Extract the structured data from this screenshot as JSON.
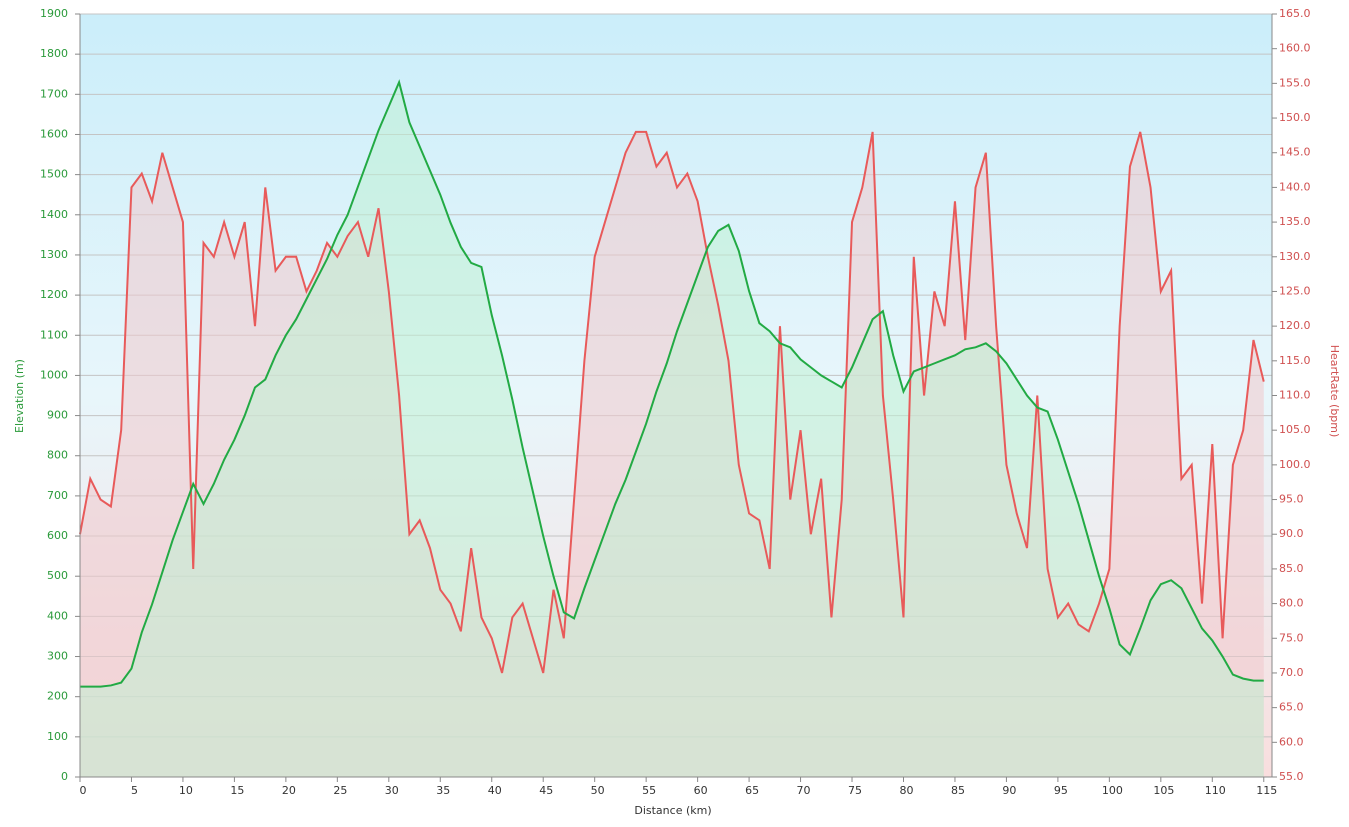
{
  "chart_data": {
    "type": "line",
    "xlabel": "Distance  (km)",
    "ylabel": "Elevation (m)",
    "y2label": "HeartRate (bpm)",
    "x": [
      0,
      1,
      2,
      3,
      4,
      5,
      6,
      7,
      8,
      9,
      10,
      11,
      12,
      13,
      14,
      15,
      16,
      17,
      18,
      19,
      20,
      21,
      22,
      23,
      24,
      25,
      26,
      27,
      28,
      29,
      30,
      31,
      32,
      33,
      34,
      35,
      36,
      37,
      38,
      39,
      40,
      41,
      42,
      43,
      44,
      45,
      46,
      47,
      48,
      49,
      50,
      51,
      52,
      53,
      54,
      55,
      56,
      57,
      58,
      59,
      60,
      61,
      62,
      63,
      64,
      65,
      66,
      67,
      68,
      69,
      70,
      71,
      72,
      73,
      74,
      75,
      76,
      77,
      78,
      79,
      80,
      81,
      82,
      83,
      84,
      85,
      86,
      87,
      88,
      89,
      90,
      91,
      92,
      93,
      94,
      95,
      96,
      97,
      98,
      99,
      100,
      101,
      102,
      103,
      104,
      105,
      106,
      107,
      108,
      109,
      110,
      111,
      112,
      113,
      114,
      115
    ],
    "series": [
      {
        "color": "#22aa44",
        "fill": "#bff0d4",
        "axis": "y",
        "values": [
          225,
          225,
          225,
          228,
          235,
          270,
          360,
          430,
          510,
          590,
          660,
          730,
          680,
          730,
          790,
          840,
          900,
          970,
          990,
          1050,
          1100,
          1140,
          1190,
          1240,
          1290,
          1350,
          1400,
          1470,
          1540,
          1610,
          1670,
          1730,
          1630,
          1570,
          1510,
          1450,
          1380,
          1320,
          1280,
          1270,
          1150,
          1050,
          940,
          820,
          710,
          600,
          500,
          410,
          395,
          470,
          540,
          610,
          680,
          740,
          810,
          880,
          960,
          1030,
          1110,
          1180,
          1250,
          1320,
          1360,
          1375,
          1310,
          1210,
          1130,
          1110,
          1080,
          1070,
          1040,
          1020,
          1000,
          985,
          970,
          1020,
          1080,
          1140,
          1160,
          1050,
          960,
          1010,
          1020,
          1030,
          1040,
          1050,
          1065,
          1070,
          1080,
          1060,
          1030,
          990,
          950,
          920,
          910,
          840,
          760,
          680,
          590,
          500,
          420,
          330,
          305,
          370,
          440,
          480,
          490,
          470,
          420,
          370,
          340,
          300,
          255,
          245,
          240,
          240
        ]
      },
      {
        "color": "#e85a5a",
        "fill": "#f0c8cc",
        "axis": "y2",
        "values": [
          90,
          98,
          95,
          94,
          105,
          140,
          142,
          138,
          145,
          140,
          135,
          85,
          132,
          130,
          135,
          130,
          135,
          120,
          140,
          128,
          130,
          130,
          125,
          128,
          132,
          130,
          133,
          135,
          130,
          137,
          125,
          110,
          90,
          92,
          88,
          82,
          80,
          76,
          88,
          78,
          75,
          70,
          78,
          80,
          75,
          70,
          82,
          75,
          95,
          115,
          130,
          135,
          140,
          145,
          148,
          148,
          143,
          145,
          140,
          142,
          138,
          130,
          123,
          115,
          100,
          93,
          92,
          85,
          120,
          95,
          105,
          90,
          98,
          78,
          95,
          135,
          140,
          148,
          110,
          95,
          78,
          130,
          110,
          125,
          120,
          138,
          118,
          140,
          145,
          120,
          100,
          93,
          88,
          110,
          85,
          78,
          80,
          77,
          76,
          80,
          85,
          120,
          143,
          148,
          140,
          125,
          128,
          98,
          100,
          80,
          103,
          75,
          100,
          105,
          118,
          112
        ]
      }
    ],
    "xlim": [
      0,
      115.8
    ],
    "xticks": [
      0,
      5,
      10,
      15,
      20,
      25,
      30,
      35,
      40,
      45,
      50,
      55,
      60,
      65,
      70,
      75,
      80,
      85,
      90,
      95,
      100,
      105,
      110,
      115
    ],
    "ylim": [
      0,
      1900
    ],
    "yticks": [
      0,
      100,
      200,
      300,
      400,
      500,
      600,
      700,
      800,
      900,
      1000,
      1100,
      1200,
      1300,
      1400,
      1500,
      1600,
      1700,
      1800,
      1900
    ],
    "y2lim": [
      55,
      165
    ],
    "y2ticks": [
      {
        "value": 55,
        "label": "55.0"
      },
      {
        "value": 60,
        "label": "60.0"
      },
      {
        "value": 65,
        "label": "65.0"
      },
      {
        "value": 70,
        "label": "70.0"
      },
      {
        "value": 75,
        "label": "75.0"
      },
      {
        "value": 80,
        "label": "80.0"
      },
      {
        "value": 85,
        "label": "85.0"
      },
      {
        "value": 90,
        "label": "90.0"
      },
      {
        "value": 95,
        "label": "95.0"
      },
      {
        "value": 100,
        "label": "100.0"
      },
      {
        "value": 105,
        "label": "105.0"
      },
      {
        "value": 110,
        "label": "110.0"
      },
      {
        "value": 115,
        "label": "115.0"
      },
      {
        "value": 120,
        "label": "120.0"
      },
      {
        "value": 125,
        "label": "125.0"
      },
      {
        "value": 130,
        "label": "130.0"
      },
      {
        "value": 135,
        "label": "135.0"
      },
      {
        "value": 140,
        "label": "140.0"
      },
      {
        "value": 145,
        "label": "145.0"
      },
      {
        "value": 150,
        "label": "150.0"
      },
      {
        "value": 155,
        "label": "155.0"
      },
      {
        "value": 160,
        "label": "160.0"
      },
      {
        "value": 165,
        "label": "165.0"
      }
    ],
    "grid": true,
    "ytick_color": "#2a9a3a",
    "y2tick_color": "#d05050"
  }
}
